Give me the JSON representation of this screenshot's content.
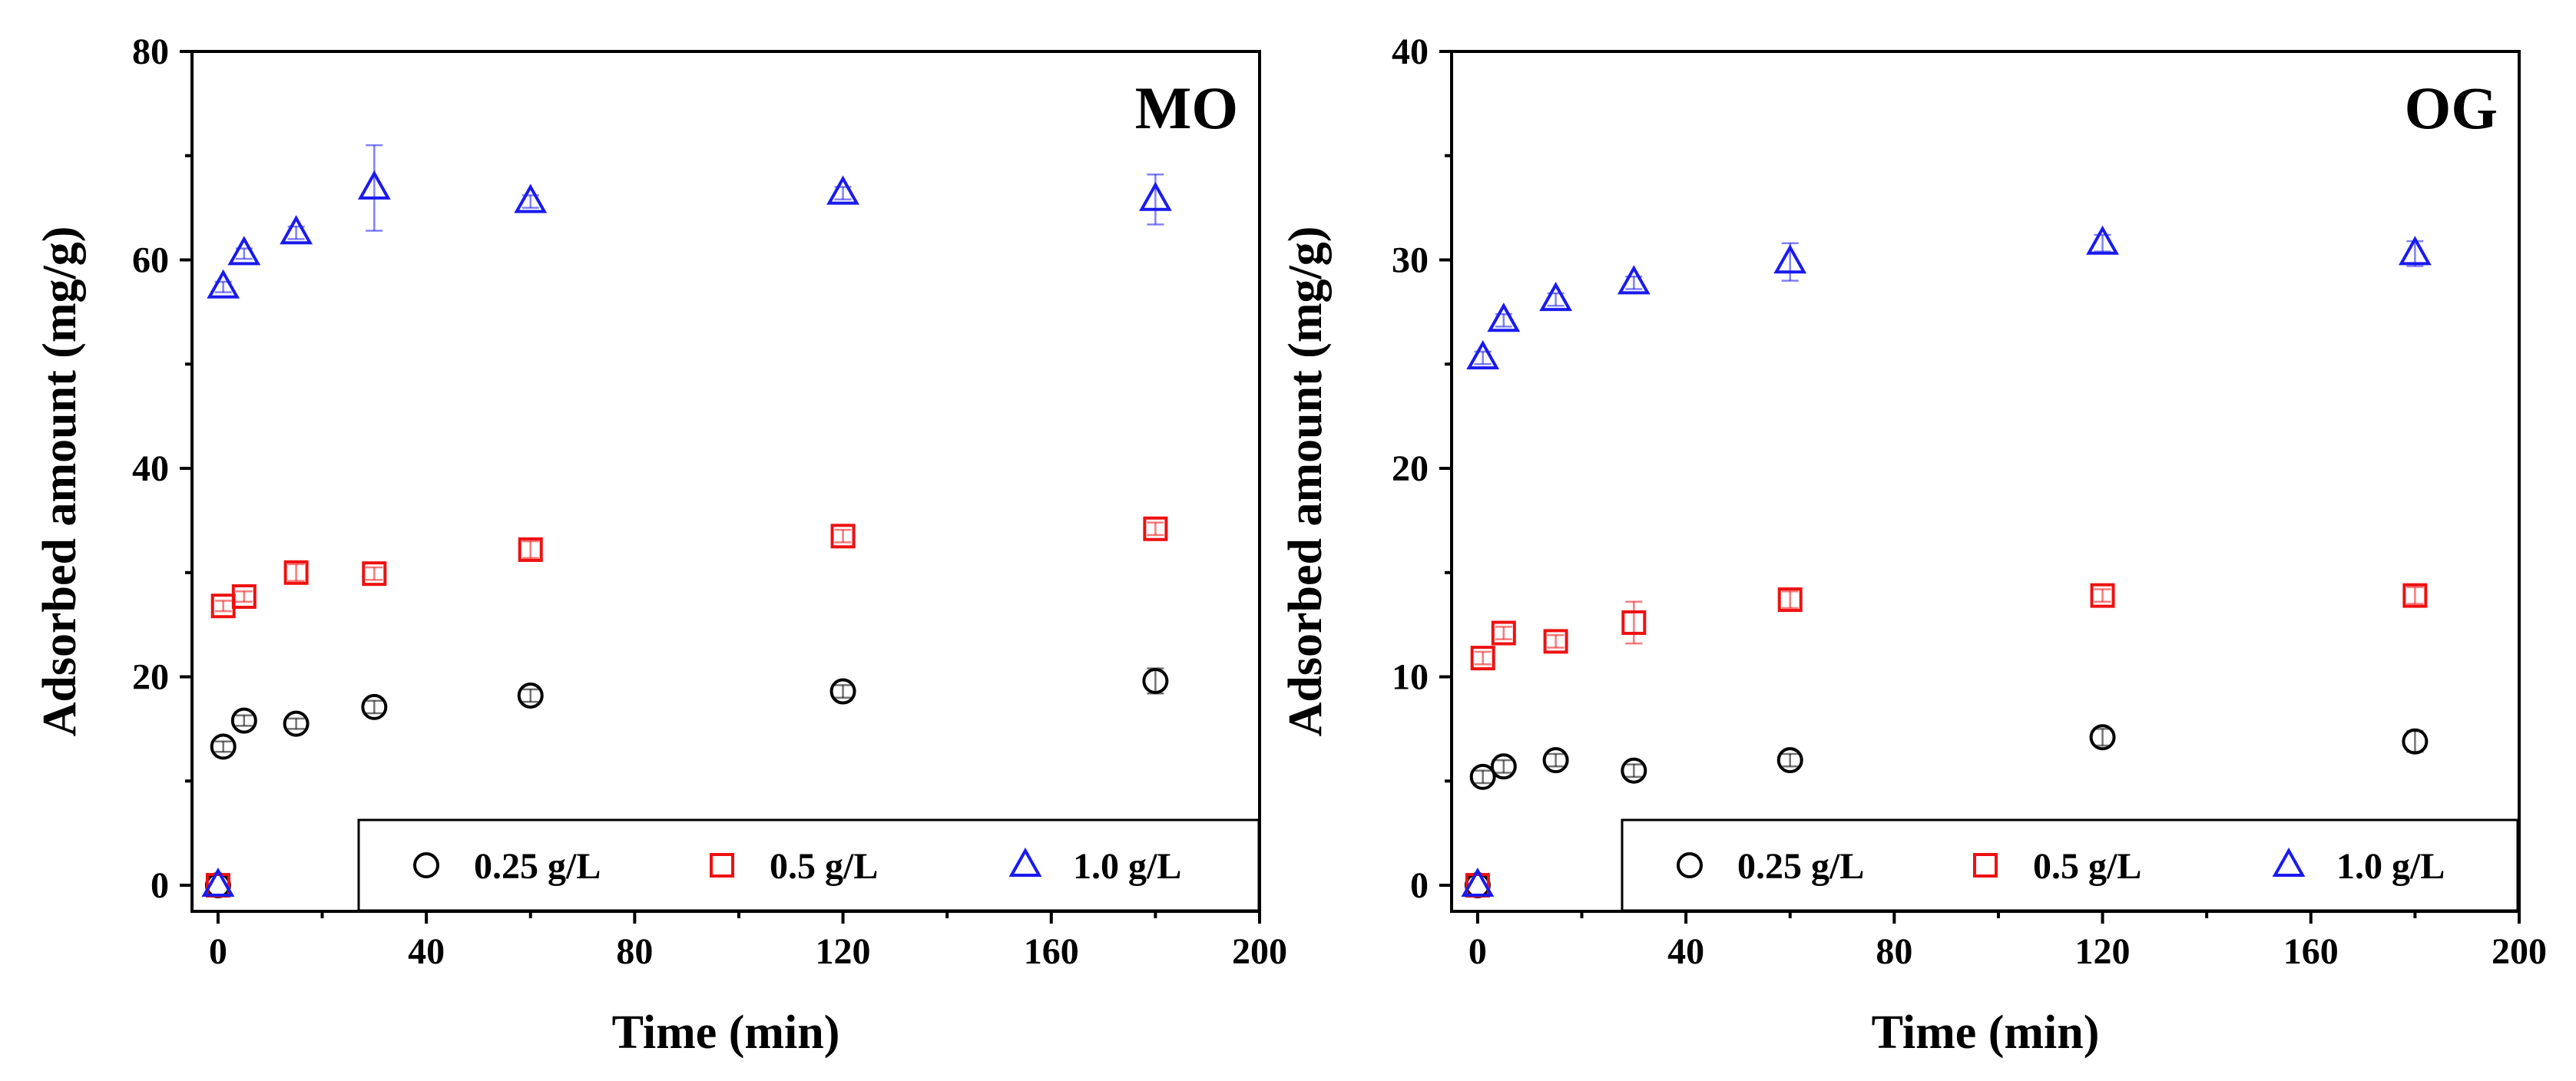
{
  "chart_data": [
    {
      "type": "scatter",
      "label": "MO",
      "xlabel": "Time (min)",
      "ylabel": "Adsorbed amount (mg/g)",
      "xlim": [
        -5,
        200
      ],
      "ylim": [
        -2.5,
        80
      ],
      "xticks": [
        0,
        40,
        80,
        120,
        160,
        200
      ],
      "yticks": [
        0,
        20,
        40,
        60,
        80
      ],
      "xtick_labels": [
        "0",
        "40",
        "80",
        "120",
        "160",
        "200"
      ],
      "ytick_labels": [
        "0",
        "20",
        "40",
        "60",
        "80"
      ],
      "legend_position": "bottom-right",
      "series": [
        {
          "name": "0.25 g/L",
          "marker": "circle",
          "color": "#000000",
          "x": [
            0,
            1,
            5,
            15,
            30,
            60,
            120,
            180
          ],
          "y": [
            0,
            13.3,
            15.8,
            15.5,
            17.1,
            18.2,
            18.6,
            19.6
          ],
          "err": [
            0,
            0.5,
            0.5,
            0.5,
            0.6,
            0.6,
            0.6,
            1.2
          ]
        },
        {
          "name": "0.5 g/L",
          "marker": "square",
          "color": "#ee1111",
          "x": [
            0,
            1,
            5,
            15,
            30,
            60,
            120,
            180
          ],
          "y": [
            0,
            26.8,
            27.7,
            30.0,
            29.9,
            32.2,
            33.5,
            34.2
          ],
          "err": [
            0,
            0.5,
            0.5,
            0.8,
            0.6,
            0.8,
            0.6,
            0.6
          ]
        },
        {
          "name": "1.0 g/L",
          "marker": "triangle",
          "color": "#1a1aee",
          "x": [
            0,
            1,
            5,
            15,
            30,
            60,
            120,
            180
          ],
          "y": [
            0,
            57.4,
            60.6,
            62.6,
            66.9,
            65.6,
            66.4,
            65.8
          ],
          "err": [
            0,
            0.5,
            0.5,
            0.6,
            4.1,
            0.6,
            0.6,
            2.4
          ]
        }
      ]
    },
    {
      "type": "scatter",
      "label": "OG",
      "xlabel": "Time (min)",
      "ylabel": "Adsorbed amount (mg/g)",
      "xlim": [
        -5,
        200
      ],
      "ylim": [
        -1.25,
        40
      ],
      "xticks": [
        0,
        40,
        80,
        120,
        160,
        200
      ],
      "yticks": [
        0,
        10,
        20,
        30,
        40
      ],
      "xtick_labels": [
        "0",
        "40",
        "80",
        "120",
        "160",
        "200"
      ],
      "ytick_labels": [
        "0",
        "10",
        "20",
        "30",
        "40"
      ],
      "legend_position": "bottom-right",
      "series": [
        {
          "name": "0.25 g/L",
          "marker": "circle",
          "color": "#000000",
          "x": [
            0,
            1,
            5,
            15,
            30,
            60,
            120,
            180
          ],
          "y": [
            0,
            5.2,
            5.7,
            6.0,
            5.5,
            6.0,
            7.1,
            6.9
          ],
          "err": [
            0,
            0.3,
            0.3,
            0.3,
            0.3,
            0.3,
            0.4,
            0.5
          ]
        },
        {
          "name": "0.5 g/L",
          "marker": "square",
          "color": "#ee1111",
          "x": [
            0,
            1,
            5,
            15,
            30,
            60,
            120,
            180
          ],
          "y": [
            0,
            10.9,
            12.1,
            11.7,
            12.6,
            13.7,
            13.9,
            13.9
          ],
          "err": [
            0,
            0.3,
            0.3,
            0.3,
            1.0,
            0.4,
            0.3,
            0.4
          ]
        },
        {
          "name": "1.0 g/L",
          "marker": "triangle",
          "color": "#1a1aee",
          "x": [
            0,
            1,
            5,
            15,
            30,
            60,
            120,
            180
          ],
          "y": [
            0,
            25.3,
            27.1,
            28.1,
            28.9,
            29.9,
            30.8,
            30.3
          ],
          "err": [
            0,
            0.3,
            0.3,
            0.3,
            0.3,
            0.9,
            0.4,
            0.6
          ]
        }
      ]
    }
  ]
}
